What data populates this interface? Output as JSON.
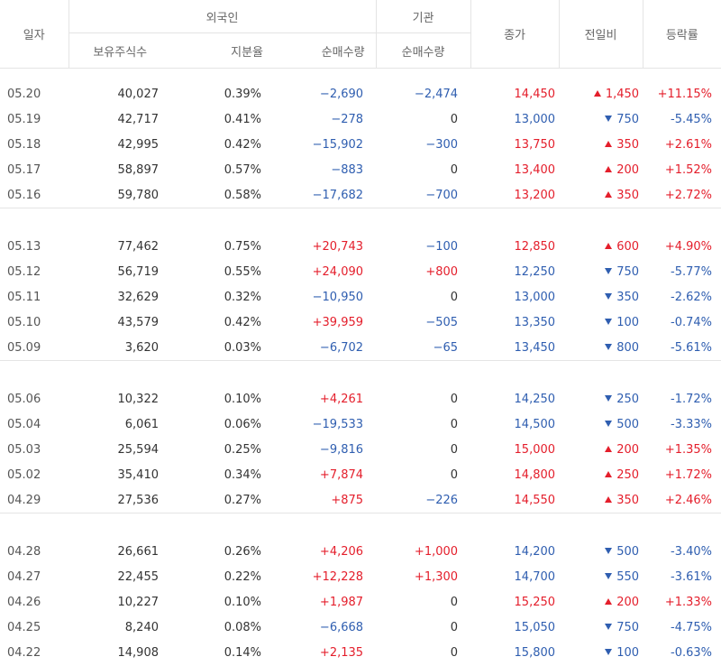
{
  "headers": {
    "date": "일자",
    "foreign": "외국인",
    "institution": "기관",
    "holdings": "보유주식수",
    "ratio": "지분율",
    "foreign_net": "순매수량",
    "institution_net": "순매수량",
    "close": "종가",
    "change": "전일비",
    "rate": "등락률"
  },
  "colors": {
    "up": "#e41e2b",
    "down": "#2f5eb0",
    "border": "#e4e4e4",
    "header_text": "#666666"
  },
  "groups": [
    {
      "rows": [
        {
          "date": "05.20",
          "holdings": "40,027",
          "ratio": "0.39%",
          "foreign_net": "−2,690",
          "institution_net": "−2,474",
          "close": "14,450",
          "dir": "up",
          "change": "1,450",
          "rate": "+11.15%"
        },
        {
          "date": "05.19",
          "holdings": "42,717",
          "ratio": "0.41%",
          "foreign_net": "−278",
          "institution_net": "0",
          "close": "13,000",
          "dir": "down",
          "change": "750",
          "rate": "-5.45%"
        },
        {
          "date": "05.18",
          "holdings": "42,995",
          "ratio": "0.42%",
          "foreign_net": "−15,902",
          "institution_net": "−300",
          "close": "13,750",
          "dir": "up",
          "change": "350",
          "rate": "+2.61%"
        },
        {
          "date": "05.17",
          "holdings": "58,897",
          "ratio": "0.57%",
          "foreign_net": "−883",
          "institution_net": "0",
          "close": "13,400",
          "dir": "up",
          "change": "200",
          "rate": "+1.52%"
        },
        {
          "date": "05.16",
          "holdings": "59,780",
          "ratio": "0.58%",
          "foreign_net": "−17,682",
          "institution_net": "−700",
          "close": "13,200",
          "dir": "up",
          "change": "350",
          "rate": "+2.72%"
        }
      ]
    },
    {
      "rows": [
        {
          "date": "05.13",
          "holdings": "77,462",
          "ratio": "0.75%",
          "foreign_net": "+20,743",
          "institution_net": "−100",
          "close": "12,850",
          "dir": "up",
          "change": "600",
          "rate": "+4.90%"
        },
        {
          "date": "05.12",
          "holdings": "56,719",
          "ratio": "0.55%",
          "foreign_net": "+24,090",
          "institution_net": "+800",
          "close": "12,250",
          "dir": "down",
          "change": "750",
          "rate": "-5.77%"
        },
        {
          "date": "05.11",
          "holdings": "32,629",
          "ratio": "0.32%",
          "foreign_net": "−10,950",
          "institution_net": "0",
          "close": "13,000",
          "dir": "down",
          "change": "350",
          "rate": "-2.62%"
        },
        {
          "date": "05.10",
          "holdings": "43,579",
          "ratio": "0.42%",
          "foreign_net": "+39,959",
          "institution_net": "−505",
          "close": "13,350",
          "dir": "down",
          "change": "100",
          "rate": "-0.74%"
        },
        {
          "date": "05.09",
          "holdings": "3,620",
          "ratio": "0.03%",
          "foreign_net": "−6,702",
          "institution_net": "−65",
          "close": "13,450",
          "dir": "down",
          "change": "800",
          "rate": "-5.61%"
        }
      ]
    },
    {
      "rows": [
        {
          "date": "05.06",
          "holdings": "10,322",
          "ratio": "0.10%",
          "foreign_net": "+4,261",
          "institution_net": "0",
          "close": "14,250",
          "dir": "down",
          "change": "250",
          "rate": "-1.72%"
        },
        {
          "date": "05.04",
          "holdings": "6,061",
          "ratio": "0.06%",
          "foreign_net": "−19,533",
          "institution_net": "0",
          "close": "14,500",
          "dir": "down",
          "change": "500",
          "rate": "-3.33%"
        },
        {
          "date": "05.03",
          "holdings": "25,594",
          "ratio": "0.25%",
          "foreign_net": "−9,816",
          "institution_net": "0",
          "close": "15,000",
          "dir": "up",
          "change": "200",
          "rate": "+1.35%"
        },
        {
          "date": "05.02",
          "holdings": "35,410",
          "ratio": "0.34%",
          "foreign_net": "+7,874",
          "institution_net": "0",
          "close": "14,800",
          "dir": "up",
          "change": "250",
          "rate": "+1.72%"
        },
        {
          "date": "04.29",
          "holdings": "27,536",
          "ratio": "0.27%",
          "foreign_net": "+875",
          "institution_net": "−226",
          "close": "14,550",
          "dir": "up",
          "change": "350",
          "rate": "+2.46%"
        }
      ]
    },
    {
      "rows": [
        {
          "date": "04.28",
          "holdings": "26,661",
          "ratio": "0.26%",
          "foreign_net": "+4,206",
          "institution_net": "+1,000",
          "close": "14,200",
          "dir": "down",
          "change": "500",
          "rate": "-3.40%"
        },
        {
          "date": "04.27",
          "holdings": "22,455",
          "ratio": "0.22%",
          "foreign_net": "+12,228",
          "institution_net": "+1,300",
          "close": "14,700",
          "dir": "down",
          "change": "550",
          "rate": "-3.61%"
        },
        {
          "date": "04.26",
          "holdings": "10,227",
          "ratio": "0.10%",
          "foreign_net": "+1,987",
          "institution_net": "0",
          "close": "15,250",
          "dir": "up",
          "change": "200",
          "rate": "+1.33%"
        },
        {
          "date": "04.25",
          "holdings": "8,240",
          "ratio": "0.08%",
          "foreign_net": "−6,668",
          "institution_net": "0",
          "close": "15,050",
          "dir": "down",
          "change": "750",
          "rate": "-4.75%"
        },
        {
          "date": "04.22",
          "holdings": "14,908",
          "ratio": "0.14%",
          "foreign_net": "+2,135",
          "institution_net": "0",
          "close": "15,800",
          "dir": "down",
          "change": "100",
          "rate": "-0.63%"
        }
      ]
    }
  ]
}
